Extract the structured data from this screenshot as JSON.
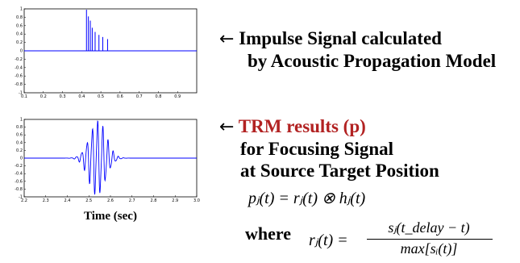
{
  "plots": [
    {
      "name": "impulse-signal",
      "x_ticks": [
        "0.1",
        "0.2",
        "0.3",
        "0.4",
        "0.5",
        "0.6",
        "0.7",
        "0.8",
        "0.9"
      ],
      "y_ticks": [
        "1",
        "0.8",
        "0.6",
        "0.4",
        "0.2",
        "0",
        "-0.2",
        "-0.4",
        "-0.6",
        "-0.8",
        "-1"
      ],
      "x_range": [
        0.1,
        1.0
      ],
      "y_range": [
        -1,
        1
      ],
      "color": "#0000ff",
      "impulses": [
        {
          "x": 0.425,
          "y": 0.98
        },
        {
          "x": 0.435,
          "y": 0.82
        },
        {
          "x": 0.445,
          "y": 0.72
        },
        {
          "x": 0.455,
          "y": 0.55
        },
        {
          "x": 0.47,
          "y": 0.45
        },
        {
          "x": 0.49,
          "y": 0.38
        },
        {
          "x": 0.51,
          "y": 0.33
        },
        {
          "x": 0.535,
          "y": 0.28
        }
      ]
    },
    {
      "name": "trm-result",
      "x_ticks": [
        "2.2",
        "2.3",
        "2.4",
        "2.5",
        "2.6",
        "2.7",
        "2.8",
        "2.9",
        "3.0"
      ],
      "y_ticks": [
        "1",
        "0.8",
        "0.6",
        "0.4",
        "0.2",
        "0",
        "-0.2",
        "-0.4",
        "-0.6",
        "-0.8",
        "-1"
      ],
      "x_range": [
        2.2,
        3.0
      ],
      "y_range": [
        -1,
        1
      ],
      "color": "#0000ff",
      "xlabel": "Time (sec)"
    }
  ],
  "captions": {
    "arrow": "←",
    "top_line1": "Impulse  Signal calculated",
    "top_line2": "by Acoustic Propagation Model",
    "trm_red": "TRM results (p)",
    "trm_line2": "for Focusing Signal",
    "trm_line3": "at Source Target Position"
  },
  "equations": {
    "main": "pⱼ(t) = rⱼ(t) ⊗ hⱼ(t)",
    "where": "where",
    "r_lhs": "rⱼ(t) =",
    "numerator": "sⱼ(t_delay − t)",
    "denominator": "max[sᵢ(t)]"
  }
}
